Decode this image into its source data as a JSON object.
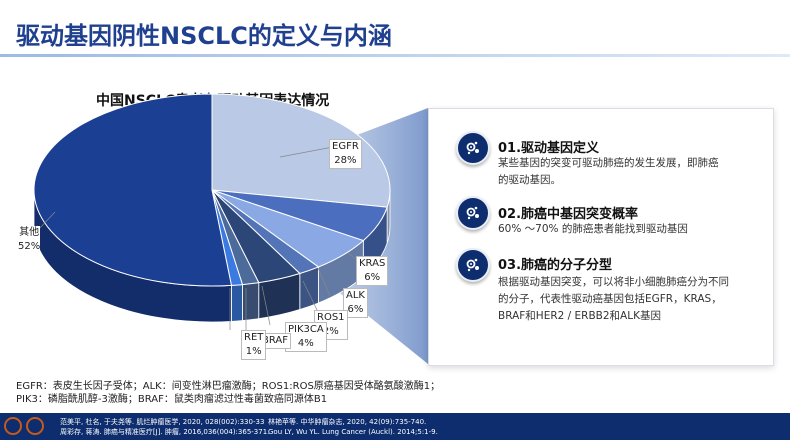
{
  "page": {
    "title": "驱动基因阴性NSCLC的定义与内涵"
  },
  "chart_data": {
    "type": "pie",
    "title": "中国NSCLC患者各驱动基因表达情况",
    "slices": [
      {
        "name": "EGFR",
        "value": 28,
        "label": "28%",
        "color": "#b9c9e6"
      },
      {
        "name": "KRAS",
        "value": 6,
        "label": "6%",
        "color": "#4b6fbe"
      },
      {
        "name": "ALK",
        "value": 6,
        "label": "6%",
        "color": "#8aa9e4"
      },
      {
        "name": "ROS1",
        "value": 2,
        "label": "2%",
        "color": "#5474b8"
      },
      {
        "name": "PIK3CA",
        "value": 4,
        "label": "4%",
        "color": "#2b4677"
      },
      {
        "name": "BRAF",
        "value": 0,
        "label": "",
        "color": "#4c6a9a"
      },
      {
        "name": "RET",
        "value": 1,
        "label": "1%",
        "color": "#3b7ae0"
      },
      {
        "name": "其他",
        "value": 52,
        "label": "52%",
        "color": "#1b3f93"
      }
    ]
  },
  "panel": {
    "items": [
      {
        "title": "01.驱动基因定义",
        "text": [
          "某些基因的突变可驱动肺癌的发生发展，即肺癌",
          "的驱动基因。"
        ],
        "icon": "gear-cells-icon"
      },
      {
        "title": "02.肺癌中基因突变概率",
        "text": [
          "60% ～70% 的肺癌患者能找到驱动基因"
        ],
        "icon": "gear-cells-icon"
      },
      {
        "title": "03.肺癌的分子分型",
        "text": [
          "根据驱动基因突变，可以将非小细胞肺癌分为不同",
          "的分子，代表性驱动癌基因包括EGFR，KRAS，",
          "BRAF和HER2 / ERBB2和ALK基因"
        ],
        "icon": "gear-cells-icon"
      }
    ]
  },
  "footnote": {
    "line1": "EGFR：表皮生长因子受体；ALK：间变性淋巴瘤激酶；ROS1:ROS原癌基因受体酪氨酸激酶1；",
    "line2": "PIK3：磷脂酰肌醇-3激酶；BRAF：鼠类肉瘤滤过性毒菌致癌同源体B1"
  },
  "footer": {
    "ref1a": "范美平, 杜名, 于夫尧等. 肌烂肿瘤医学, 2020, 028(002):330-33",
    "ref1b": "周彩存, 蒋涛. 肺癌与精准医疗[J]. 肿瘤, 2016,036(004):365-371.",
    "ref2a": "林艳苹等. 中华肿瘤杂志, 2020, 42(09):735-740.",
    "ref2b": "Gou LY, Wu YL. Lung Cancer (Auckl). 2014;5:1-9.",
    "accent": "#c55a1b"
  }
}
